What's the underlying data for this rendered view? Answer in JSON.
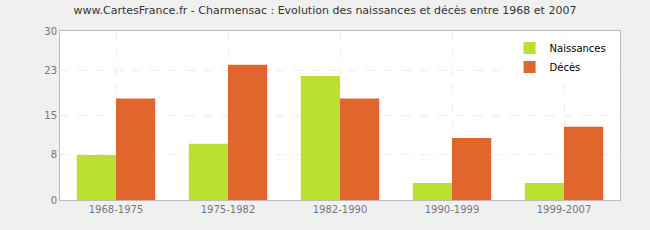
{
  "chart_data": {
    "type": "bar",
    "title": "www.CartesFrance.fr - Charmensac : Evolution des naissances et décès entre 1968 et 2007",
    "categories": [
      "1968-1975",
      "1975-1982",
      "1982-1990",
      "1990-1999",
      "1999-2007"
    ],
    "series": [
      {
        "name": "Naissances",
        "color": "#bbe02f",
        "values": [
          8,
          10,
          22,
          3,
          3
        ]
      },
      {
        "name": "Décès",
        "color": "#e0662e",
        "values": [
          18,
          24,
          18,
          11,
          13
        ]
      }
    ],
    "ylim": [
      0,
      30
    ],
    "yticks": [
      0,
      8,
      15,
      23,
      30
    ],
    "grid": true,
    "legend": "top-right"
  }
}
